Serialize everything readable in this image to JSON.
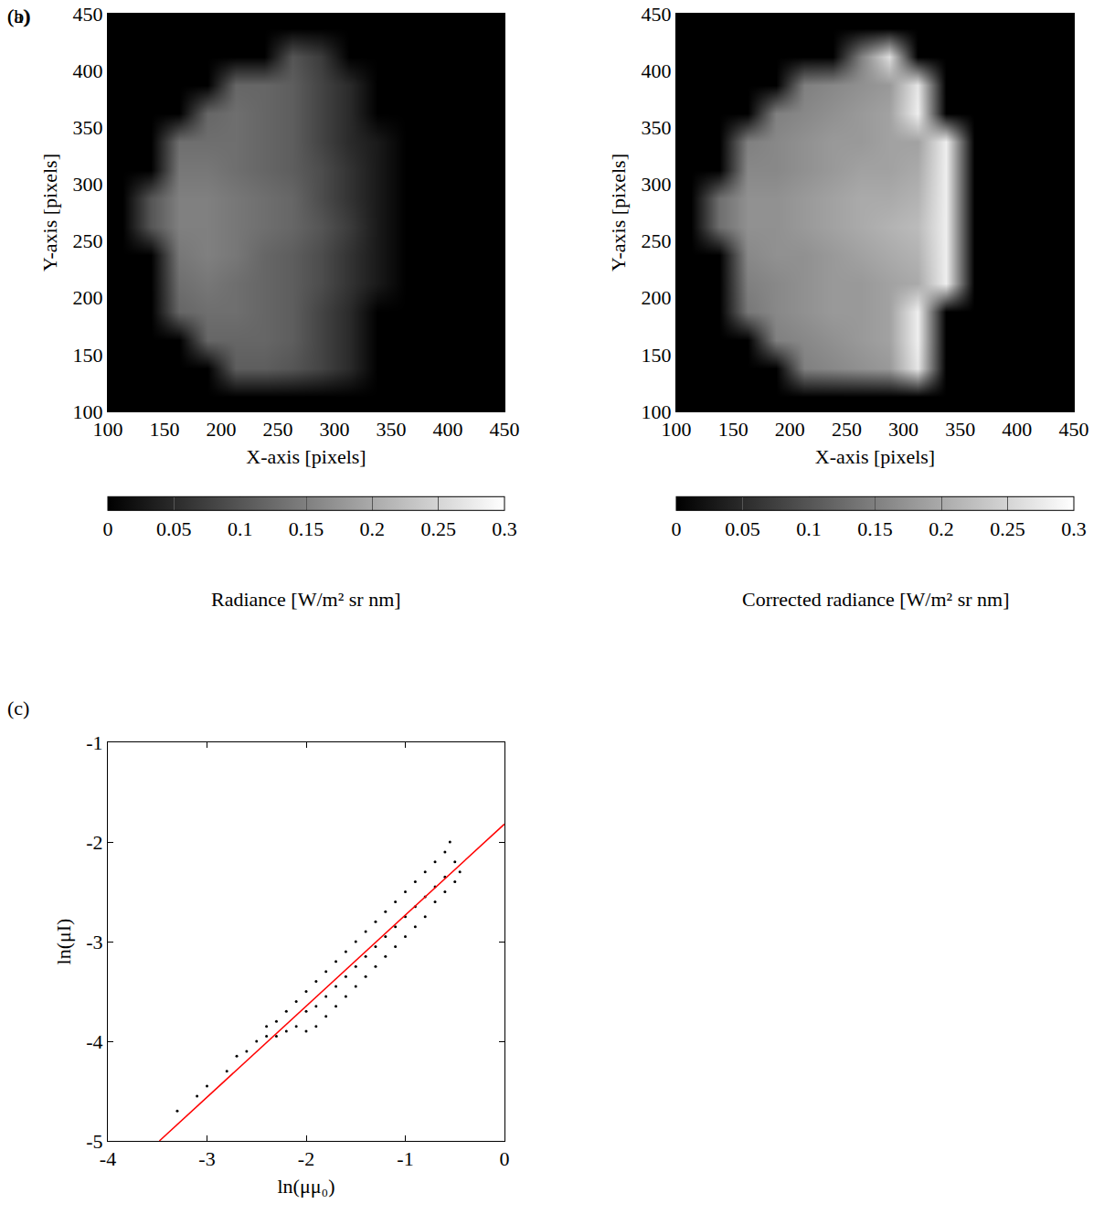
{
  "chart_data": [
    {
      "type": "heatmap",
      "title": "(a)",
      "x_label": "X-axis [pixels]",
      "y_label": "Y-axis [pixels]",
      "x": [
        112.5,
        137.5,
        162.5,
        187.5,
        212.5,
        237.5,
        262.5,
        287.5,
        312.5,
        337.5,
        362.5,
        387.5,
        412.5,
        437.5
      ],
      "y": [
        112.5,
        137.5,
        162.5,
        187.5,
        212.5,
        237.5,
        262.5,
        287.5,
        312.5,
        337.5,
        362.5,
        387.5,
        412.5,
        437.5
      ],
      "z": [
        [
          0,
          0,
          0,
          0,
          0,
          0,
          0,
          0,
          0,
          0,
          0,
          0,
          0,
          0
        ],
        [
          0,
          0,
          0,
          0,
          0.11,
          0.11,
          0.1,
          0.08,
          0.05,
          0,
          0,
          0,
          0,
          0
        ],
        [
          0,
          0,
          0,
          0.12,
          0.12,
          0.12,
          0.11,
          0.08,
          0.05,
          0,
          0,
          0,
          0,
          0
        ],
        [
          0,
          0,
          0.12,
          0.13,
          0.13,
          0.12,
          0.11,
          0.08,
          0.05,
          0,
          0,
          0,
          0,
          0
        ],
        [
          0,
          0,
          0.13,
          0.14,
          0.13,
          0.12,
          0.11,
          0.09,
          0.06,
          0.03,
          0,
          0,
          0,
          0
        ],
        [
          0,
          0,
          0.14,
          0.15,
          0.14,
          0.12,
          0.11,
          0.09,
          0.06,
          0.03,
          0,
          0,
          0,
          0
        ],
        [
          0,
          0.1,
          0.15,
          0.15,
          0.14,
          0.13,
          0.12,
          0.1,
          0.07,
          0.03,
          0,
          0,
          0,
          0
        ],
        [
          0,
          0.1,
          0.15,
          0.15,
          0.14,
          0.13,
          0.12,
          0.09,
          0.06,
          0.03,
          0,
          0,
          0,
          0
        ],
        [
          0,
          0,
          0.14,
          0.14,
          0.13,
          0.12,
          0.11,
          0.09,
          0.06,
          0.03,
          0,
          0,
          0,
          0
        ],
        [
          0,
          0,
          0.13,
          0.13,
          0.13,
          0.12,
          0.11,
          0.08,
          0.05,
          0.03,
          0,
          0,
          0,
          0
        ],
        [
          0,
          0,
          0,
          0.12,
          0.13,
          0.12,
          0.11,
          0.08,
          0.05,
          0,
          0,
          0,
          0,
          0
        ],
        [
          0,
          0,
          0,
          0,
          0.12,
          0.12,
          0.11,
          0.08,
          0.05,
          0,
          0,
          0,
          0,
          0
        ],
        [
          0,
          0,
          0,
          0,
          0,
          0,
          0.1,
          0.07,
          0,
          0,
          0,
          0,
          0,
          0
        ],
        [
          0,
          0,
          0,
          0,
          0,
          0,
          0,
          0,
          0,
          0,
          0,
          0,
          0,
          0
        ]
      ],
      "xlim": [
        100,
        450
      ],
      "ylim": [
        100,
        450
      ],
      "xticks": [
        100,
        150,
        200,
        250,
        300,
        350,
        400,
        450
      ],
      "yticks": [
        100,
        150,
        200,
        250,
        300,
        350,
        400,
        450
      ],
      "colorbar": {
        "label": "Radiance [W/m² sr nm]",
        "range": [
          0,
          0.3
        ],
        "ticks": [
          0,
          0.05,
          0.1,
          0.15,
          0.2,
          0.25,
          0.3
        ]
      }
    },
    {
      "type": "heatmap",
      "title": "(b)",
      "x_label": "X-axis [pixels]",
      "y_label": "Y-axis [pixels]",
      "x": [
        112.5,
        137.5,
        162.5,
        187.5,
        212.5,
        237.5,
        262.5,
        287.5,
        312.5,
        337.5,
        362.5,
        387.5,
        412.5,
        437.5
      ],
      "y": [
        112.5,
        137.5,
        162.5,
        187.5,
        212.5,
        237.5,
        262.5,
        287.5,
        312.5,
        337.5,
        362.5,
        387.5,
        412.5,
        437.5
      ],
      "z": [
        [
          0,
          0,
          0,
          0,
          0,
          0,
          0,
          0,
          0,
          0,
          0,
          0,
          0,
          0
        ],
        [
          0,
          0,
          0,
          0,
          0.15,
          0.16,
          0.17,
          0.18,
          0.27,
          0,
          0,
          0,
          0,
          0
        ],
        [
          0,
          0,
          0,
          0.15,
          0.16,
          0.17,
          0.18,
          0.19,
          0.28,
          0,
          0,
          0,
          0,
          0
        ],
        [
          0,
          0,
          0.14,
          0.16,
          0.17,
          0.18,
          0.18,
          0.19,
          0.28,
          0,
          0,
          0,
          0,
          0
        ],
        [
          0,
          0,
          0.15,
          0.16,
          0.17,
          0.18,
          0.18,
          0.19,
          0.2,
          0.28,
          0,
          0,
          0,
          0
        ],
        [
          0,
          0,
          0.16,
          0.17,
          0.17,
          0.18,
          0.19,
          0.2,
          0.21,
          0.28,
          0,
          0,
          0,
          0
        ],
        [
          0,
          0.13,
          0.17,
          0.17,
          0.18,
          0.19,
          0.2,
          0.21,
          0.22,
          0.28,
          0,
          0,
          0,
          0
        ],
        [
          0,
          0.13,
          0.17,
          0.17,
          0.18,
          0.19,
          0.2,
          0.2,
          0.21,
          0.28,
          0,
          0,
          0,
          0
        ],
        [
          0,
          0,
          0.16,
          0.16,
          0.17,
          0.18,
          0.19,
          0.19,
          0.2,
          0.28,
          0,
          0,
          0,
          0
        ],
        [
          0,
          0,
          0.15,
          0.16,
          0.17,
          0.18,
          0.18,
          0.19,
          0.19,
          0.28,
          0,
          0,
          0,
          0
        ],
        [
          0,
          0,
          0,
          0.15,
          0.16,
          0.17,
          0.18,
          0.19,
          0.28,
          0,
          0,
          0,
          0,
          0
        ],
        [
          0,
          0,
          0,
          0,
          0.15,
          0.16,
          0.17,
          0.18,
          0.27,
          0,
          0,
          0,
          0,
          0
        ],
        [
          0,
          0,
          0,
          0,
          0,
          0,
          0.15,
          0.26,
          0,
          0,
          0,
          0,
          0,
          0
        ],
        [
          0,
          0,
          0,
          0,
          0,
          0,
          0,
          0,
          0,
          0,
          0,
          0,
          0,
          0
        ]
      ],
      "xlim": [
        100,
        450
      ],
      "ylim": [
        100,
        450
      ],
      "xticks": [
        100,
        150,
        200,
        250,
        300,
        350,
        400,
        450
      ],
      "yticks": [
        100,
        150,
        200,
        250,
        300,
        350,
        400,
        450
      ],
      "colorbar": {
        "label": "Corrected radiance [W/m² sr nm]",
        "range": [
          0,
          0.3
        ],
        "ticks": [
          0,
          0.05,
          0.1,
          0.15,
          0.2,
          0.25,
          0.3
        ]
      }
    },
    {
      "type": "scatter",
      "title": "(c)",
      "x_label": "ln(μμ₀)",
      "y_label": "ln(μI)",
      "xlim": [
        -4,
        0
      ],
      "ylim": [
        -5,
        -1
      ],
      "xticks": [
        -4,
        -3,
        -2,
        -1,
        0
      ],
      "yticks": [
        -5,
        -4,
        -3,
        -2,
        -1
      ],
      "grid": false,
      "series": [
        {
          "type": "scatter",
          "color": "#000000",
          "marker": "circle",
          "x": [
            -3.3,
            -3.1,
            -3.0,
            -2.8,
            -2.7,
            -2.6,
            -2.5,
            -2.4,
            -2.4,
            -2.3,
            -2.3,
            -2.2,
            -2.2,
            -2.1,
            -2.1,
            -2.0,
            -2.0,
            -2.0,
            -1.9,
            -1.9,
            -1.9,
            -1.8,
            -1.8,
            -1.8,
            -1.7,
            -1.7,
            -1.7,
            -1.6,
            -1.6,
            -1.6,
            -1.5,
            -1.5,
            -1.5,
            -1.4,
            -1.4,
            -1.4,
            -1.3,
            -1.3,
            -1.3,
            -1.2,
            -1.2,
            -1.2,
            -1.1,
            -1.1,
            -1.1,
            -1.0,
            -1.0,
            -1.0,
            -0.9,
            -0.9,
            -0.9,
            -0.8,
            -0.8,
            -0.8,
            -0.7,
            -0.7,
            -0.7,
            -0.6,
            -0.6,
            -0.6,
            -0.55,
            -0.5,
            -0.5,
            -0.45
          ],
          "values": [
            -4.7,
            -4.55,
            -4.45,
            -4.3,
            -4.15,
            -4.1,
            -4.0,
            -3.95,
            -3.85,
            -3.8,
            -3.95,
            -3.7,
            -3.9,
            -3.6,
            -3.85,
            -3.5,
            -3.7,
            -3.9,
            -3.4,
            -3.65,
            -3.85,
            -3.3,
            -3.55,
            -3.75,
            -3.2,
            -3.45,
            -3.65,
            -3.1,
            -3.35,
            -3.55,
            -3.0,
            -3.25,
            -3.45,
            -2.9,
            -3.15,
            -3.35,
            -2.8,
            -3.05,
            -3.25,
            -2.7,
            -2.95,
            -3.15,
            -2.6,
            -2.85,
            -3.05,
            -2.5,
            -2.75,
            -2.95,
            -2.4,
            -2.65,
            -2.85,
            -2.3,
            -2.55,
            -2.75,
            -2.2,
            -2.45,
            -2.6,
            -2.1,
            -2.35,
            -2.5,
            -2.0,
            -2.2,
            -2.4,
            -2.3
          ]
        },
        {
          "type": "line",
          "color": "#ff0000",
          "line_style": "solid",
          "x": [
            -3.48,
            0
          ],
          "values": [
            -5,
            -1.82
          ]
        }
      ]
    }
  ]
}
